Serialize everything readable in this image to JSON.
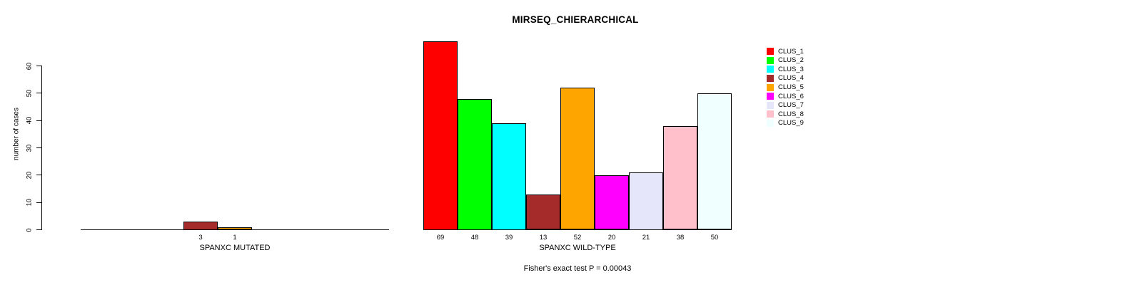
{
  "chart_data": {
    "type": "bar",
    "title": "MIRSEQ_CHIERARCHICAL",
    "ylabel": "number of cases",
    "xlabel": "",
    "annotation": "Fisher's exact test P = 0.00043",
    "yticks": [
      0,
      10,
      20,
      30,
      40,
      50,
      60
    ],
    "ylim": [
      0,
      69
    ],
    "grid": false,
    "legend_position": "right",
    "bar_borders": true,
    "background_color": "#FFFFFF",
    "series": [
      {
        "name": "CLUS_1",
        "color": "#FF0000"
      },
      {
        "name": "CLUS_2",
        "color": "#00FF00"
      },
      {
        "name": "CLUS_3",
        "color": "#00FFFF"
      },
      {
        "name": "CLUS_4",
        "color": "#A52A2A"
      },
      {
        "name": "CLUS_5",
        "color": "#FFA500"
      },
      {
        "name": "CLUS_6",
        "color": "#FF00FF"
      },
      {
        "name": "CLUS_7",
        "color": "#E6E6FA"
      },
      {
        "name": "CLUS_8",
        "color": "#FFC0CB"
      },
      {
        "name": "CLUS_9",
        "color": "#F0FFFF"
      }
    ],
    "groups": [
      {
        "label": "SPANXC MUTATED",
        "values": [
          0,
          0,
          0,
          3,
          1,
          0,
          0,
          0,
          0
        ]
      },
      {
        "label": "SPANXC WILD-TYPE",
        "values": [
          69,
          48,
          39,
          13,
          52,
          20,
          21,
          38,
          50
        ]
      }
    ]
  }
}
